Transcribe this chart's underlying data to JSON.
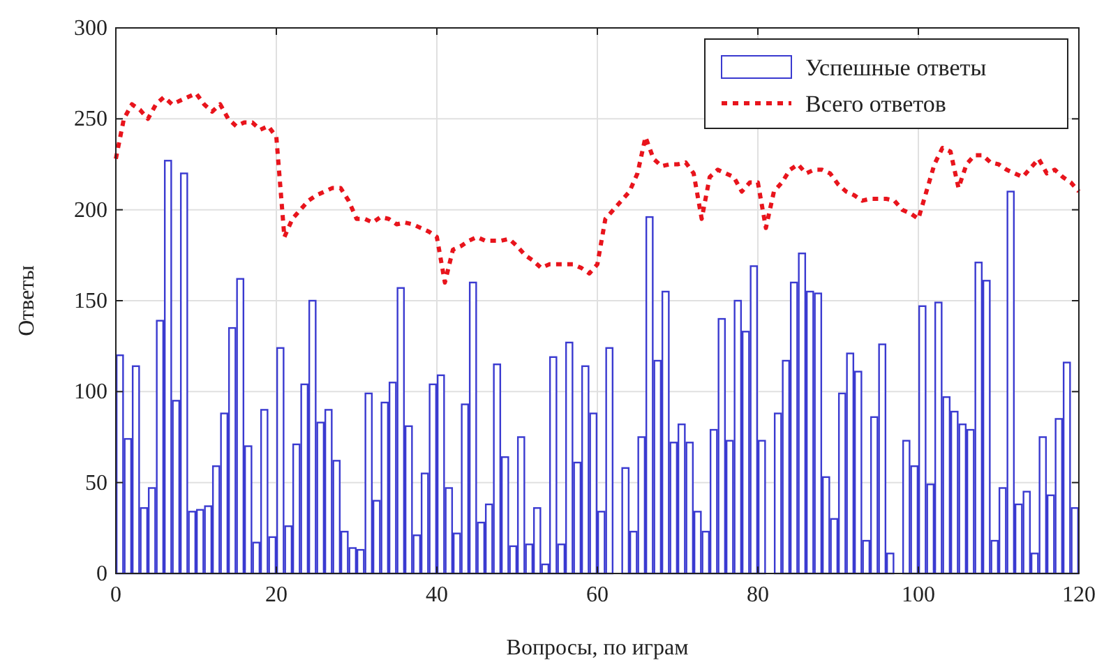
{
  "chart_data": {
    "type": "bar",
    "xlabel": "Вопросы, по играм",
    "ylabel": "Ответы",
    "xlim": [
      0,
      120
    ],
    "ylim": [
      0,
      300
    ],
    "xticks": [
      0,
      20,
      40,
      60,
      80,
      100,
      120
    ],
    "yticks": [
      0,
      50,
      100,
      150,
      200,
      250,
      300
    ],
    "grid": true,
    "legend": "top right",
    "series": [
      {
        "name": "Успешные ответы",
        "color": "#3a3ad0",
        "x": [
          0.5,
          1.5,
          2.5,
          3.5,
          4.5,
          5.5,
          6.5,
          7.5,
          8.5,
          9.5,
          10.5,
          11.5,
          12.5,
          13.5,
          14.5,
          15.5,
          16.5,
          17.5,
          18.5,
          19.5,
          20.5,
          21.5,
          22.5,
          23.5,
          24.5,
          25.5,
          26.5,
          27.5,
          28.5,
          29.5,
          30.5,
          31.5,
          32.5,
          33.5,
          34.5,
          35.5,
          36.5,
          37.5,
          38.5,
          39.5,
          40.5,
          41.5,
          42.5,
          43.5,
          44.5,
          45.5,
          46.5,
          47.5,
          48.5,
          49.5,
          50.5,
          51.5,
          52.5,
          53.5,
          54.5,
          55.5,
          56.5,
          57.5,
          58.5,
          59.5,
          60.5,
          61.5,
          62.5,
          63.5,
          64.5,
          65.5,
          66.5,
          67.5,
          68.5,
          69.5,
          70.5,
          71.5,
          72.5,
          73.5,
          74.5,
          75.5,
          76.5,
          77.5,
          78.5,
          79.5,
          80.5,
          81.5,
          82.5,
          83.5,
          84.5,
          85.5,
          86.5,
          87.5,
          88.5,
          89.5,
          90.5,
          91.5,
          92.5,
          93.5,
          94.5,
          95.5,
          96.5,
          97.5,
          98.5,
          99.5,
          100.5,
          101.5,
          102.5,
          103.5,
          104.5,
          105.5,
          106.5,
          107.5,
          108.5,
          109.5,
          110.5,
          111.5,
          112.5,
          113.5,
          114.5,
          115.5,
          116.5,
          117.5,
          118.5,
          119.5
        ],
        "values": [
          120,
          74,
          114,
          36,
          47,
          139,
          227,
          95,
          220,
          34,
          35,
          37,
          59,
          88,
          135,
          162,
          70,
          17,
          90,
          20,
          124,
          26,
          71,
          104,
          150,
          83,
          90,
          62,
          23,
          14,
          13,
          99,
          40,
          94,
          105,
          157,
          81,
          21,
          55,
          104,
          109,
          47,
          22,
          93,
          160,
          28,
          38,
          115,
          64,
          15,
          75,
          16,
          36,
          5,
          119,
          16,
          127,
          61,
          114,
          88,
          34,
          124,
          0,
          58,
          23,
          75,
          196,
          117,
          155,
          72,
          82,
          72,
          34,
          23,
          79,
          140,
          73,
          150,
          133,
          169,
          73,
          0,
          88,
          117,
          160,
          176,
          155,
          154,
          53,
          30,
          99,
          121,
          111,
          18,
          86,
          126,
          11,
          0,
          73,
          59,
          147,
          49,
          149,
          97,
          89,
          82,
          79,
          171,
          161,
          18,
          47,
          210,
          38,
          45,
          11,
          75,
          43,
          85,
          116,
          36
        ]
      },
      {
        "name": "Всего ответов",
        "type": "line",
        "color": "#e8141c",
        "line_style": "dashed",
        "x": [
          0,
          1,
          2,
          3,
          4,
          5,
          6,
          7,
          8,
          9,
          10,
          11,
          12,
          13,
          14,
          15,
          16,
          17,
          18,
          19,
          20,
          21,
          22,
          23,
          24,
          25,
          26,
          27,
          28,
          29,
          30,
          31,
          32,
          33,
          34,
          35,
          36,
          37,
          38,
          39,
          40,
          41,
          42,
          43,
          44,
          45,
          46,
          47,
          48,
          49,
          50,
          51,
          52,
          53,
          54,
          55,
          56,
          57,
          58,
          59,
          60,
          61,
          62,
          63,
          64,
          65,
          66,
          67,
          68,
          69,
          70,
          71,
          72,
          73,
          74,
          75,
          76,
          77,
          78,
          79,
          80,
          81,
          82,
          83,
          84,
          85,
          86,
          87,
          88,
          89,
          90,
          91,
          92,
          93,
          94,
          95,
          96,
          97,
          98,
          99,
          100,
          101,
          102,
          103,
          104,
          105,
          106,
          107,
          108,
          109,
          110,
          111,
          112,
          113,
          114,
          115,
          116,
          117,
          118,
          119,
          120
        ],
        "values": [
          228,
          250,
          258,
          255,
          250,
          258,
          262,
          258,
          260,
          262,
          264,
          258,
          254,
          258,
          250,
          246,
          248,
          248,
          244,
          246,
          240,
          185,
          195,
          200,
          205,
          208,
          210,
          212,
          212,
          205,
          195,
          195,
          193,
          196,
          195,
          192,
          193,
          192,
          190,
          188,
          185,
          160,
          178,
          180,
          183,
          185,
          183,
          183,
          183,
          184,
          180,
          175,
          172,
          168,
          170,
          170,
          170,
          170,
          168,
          165,
          170,
          195,
          200,
          205,
          210,
          220,
          240,
          228,
          224,
          225,
          225,
          226,
          220,
          195,
          218,
          222,
          220,
          218,
          210,
          215,
          215,
          190,
          210,
          215,
          222,
          225,
          220,
          222,
          222,
          220,
          214,
          210,
          208,
          205,
          206,
          206,
          206,
          205,
          200,
          198,
          195,
          210,
          225,
          234,
          232,
          212,
          225,
          230,
          230,
          226,
          225,
          222,
          220,
          218,
          223,
          228,
          220,
          222,
          218,
          215,
          210
        ]
      }
    ]
  }
}
